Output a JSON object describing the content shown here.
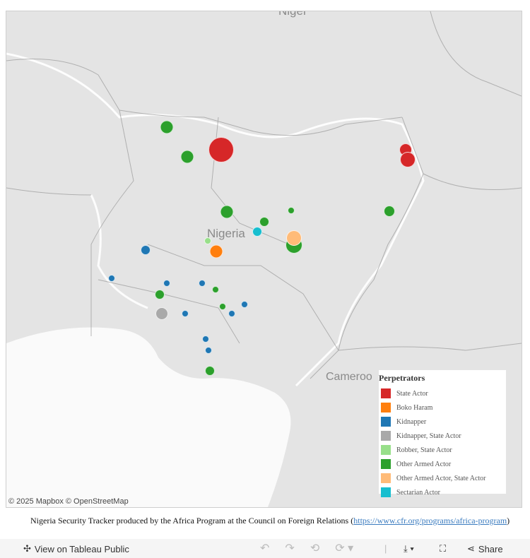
{
  "map": {
    "labels": {
      "niger": "Niger",
      "nigeria": "Nigeria",
      "cameroon": "Cameroo"
    },
    "attribution": "© 2025 Mapbox  © OpenStreetMap"
  },
  "legend": {
    "title": "Perpetrators",
    "items": [
      {
        "label": "State Actor",
        "color": "#d62728"
      },
      {
        "label": "Boko Haram",
        "color": "#ff7f0e"
      },
      {
        "label": "Kidnapper",
        "color": "#1f77b4"
      },
      {
        "label": "Kidnapper, State Actor",
        "color": "#a9a9a9"
      },
      {
        "label": "Robber, State Actor",
        "color": "#98df8a"
      },
      {
        "label": "Other Armed Actor",
        "color": "#2ca02c"
      },
      {
        "label": "Other Armed Actor, State Actor",
        "color": "#ffbb78"
      },
      {
        "label": "Sectarian Actor",
        "color": "#17becf"
      }
    ]
  },
  "caption": {
    "text": "Nigeria Security Tracker produced by the Africa Program at the Council on Foreign Relations (",
    "link": "https://www.cfr.org/programs/africa-program",
    "close": ")"
  },
  "toolbar": {
    "view_label": "View on Tableau Public",
    "share_label": "Share"
  }
}
